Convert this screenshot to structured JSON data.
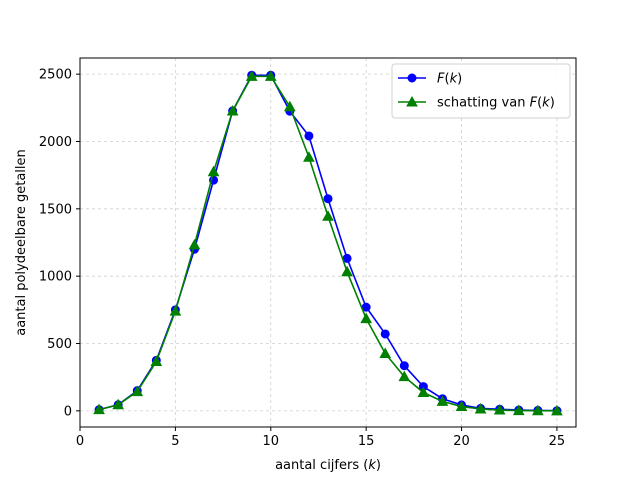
{
  "chart_data": {
    "type": "line",
    "xlabel_prefix": "aantal cijfers (",
    "xlabel_var": "k",
    "xlabel_suffix": ")",
    "ylabel": "aantal polydeelbare getallen",
    "xlim": [
      0,
      26
    ],
    "ylim": [
      -120,
      2620
    ],
    "xticks": [
      0,
      5,
      10,
      15,
      20,
      25
    ],
    "yticks": [
      0,
      500,
      1000,
      1500,
      2000,
      2500
    ],
    "grid": true,
    "legend_position": "top-right",
    "x": [
      1,
      2,
      3,
      4,
      5,
      6,
      7,
      8,
      9,
      10,
      11,
      12,
      13,
      14,
      15,
      16,
      17,
      18,
      19,
      20,
      21,
      22,
      23,
      24,
      25
    ],
    "series": [
      {
        "name": "F(k)",
        "legend_name": "F(k)",
        "legend_italic_part": "F",
        "legend_rest": "(k)",
        "color": "#0000ff",
        "marker": "circle",
        "values": [
          9,
          45,
          150,
          375,
          750,
          1200,
          1713,
          2227,
          2492,
          2492,
          2225,
          2041,
          1575,
          1132,
          770,
          571,
          335,
          180,
          90,
          44,
          18,
          12,
          6,
          3,
          1
        ]
      },
      {
        "name": "schatting van F(k)",
        "legend_plain": "schatting van ",
        "legend_italic_part": "F",
        "legend_rest": "(k)",
        "color": "#008000",
        "marker": "triangle",
        "values": [
          9,
          45,
          143,
          366,
          740,
          1232,
          1775,
          2226,
          2484,
          2484,
          2258,
          1883,
          1445,
          1033,
          685,
          426,
          254,
          136,
          70,
          32,
          14,
          6,
          2,
          1,
          0
        ]
      }
    ]
  }
}
